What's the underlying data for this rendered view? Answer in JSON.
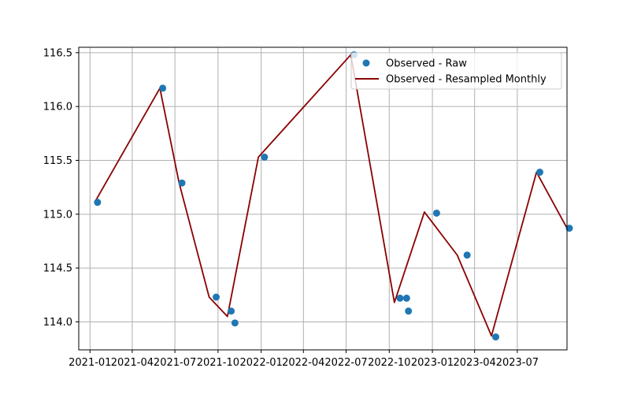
{
  "chart_data": {
    "type": "scatter",
    "title": "",
    "xlabel": "",
    "ylabel": "",
    "x_axis_type": "date",
    "xlim": [
      "2020-12-08",
      "2023-10-15"
    ],
    "ylim": [
      113.74,
      116.55
    ],
    "x_ticks": [
      "2021-01",
      "2021-04",
      "2021-07",
      "2021-10",
      "2022-01",
      "2022-04",
      "2022-07",
      "2022-10",
      "2023-01",
      "2023-04",
      "2023-07"
    ],
    "y_ticks": [
      114.0,
      114.5,
      115.0,
      115.5,
      116.0,
      116.5
    ],
    "y_tick_labels": [
      "114.0",
      "114.5",
      "115.0",
      "115.5",
      "116.0",
      "116.5"
    ],
    "grid": true,
    "legend_position": "top-right",
    "series": [
      {
        "name": "Observed - Raw",
        "kind": "scatter",
        "color": "#1f77b4",
        "points": [
          {
            "x": "2021-01-17",
            "y": 115.11
          },
          {
            "x": "2021-06-05",
            "y": 116.17
          },
          {
            "x": "2021-07-16",
            "y": 115.29
          },
          {
            "x": "2021-09-27",
            "y": 114.23
          },
          {
            "x": "2021-10-29",
            "y": 114.1
          },
          {
            "x": "2021-11-06",
            "y": 113.99
          },
          {
            "x": "2022-01-08",
            "y": 115.53
          },
          {
            "x": "2022-07-18",
            "y": 116.48
          },
          {
            "x": "2022-10-24",
            "y": 114.22
          },
          {
            "x": "2022-11-07",
            "y": 114.22
          },
          {
            "x": "2022-11-11",
            "y": 114.1
          },
          {
            "x": "2023-01-10",
            "y": 115.01
          },
          {
            "x": "2023-03-16",
            "y": 114.62
          },
          {
            "x": "2023-05-16",
            "y": 113.86
          },
          {
            "x": "2023-08-18",
            "y": 115.39
          },
          {
            "x": "2023-10-20",
            "y": 114.87
          }
        ]
      },
      {
        "name": "Observed - Resampled Monthly",
        "kind": "line",
        "color": "#8b0000",
        "points": [
          {
            "x": "2021-01-11",
            "y": 115.11
          },
          {
            "x": "2021-05-30",
            "y": 116.17
          },
          {
            "x": "2021-07-10",
            "y": 115.29
          },
          {
            "x": "2021-09-12",
            "y": 114.23
          },
          {
            "x": "2021-10-21",
            "y": 114.05
          },
          {
            "x": "2021-12-26",
            "y": 115.53
          },
          {
            "x": "2022-07-11",
            "y": 116.48
          },
          {
            "x": "2022-10-12",
            "y": 114.18
          },
          {
            "x": "2022-12-15",
            "y": 115.02
          },
          {
            "x": "2023-02-23",
            "y": 114.62
          },
          {
            "x": "2023-05-07",
            "y": 113.87
          },
          {
            "x": "2023-08-11",
            "y": 115.39
          },
          {
            "x": "2023-10-15",
            "y": 114.87
          }
        ]
      }
    ]
  }
}
